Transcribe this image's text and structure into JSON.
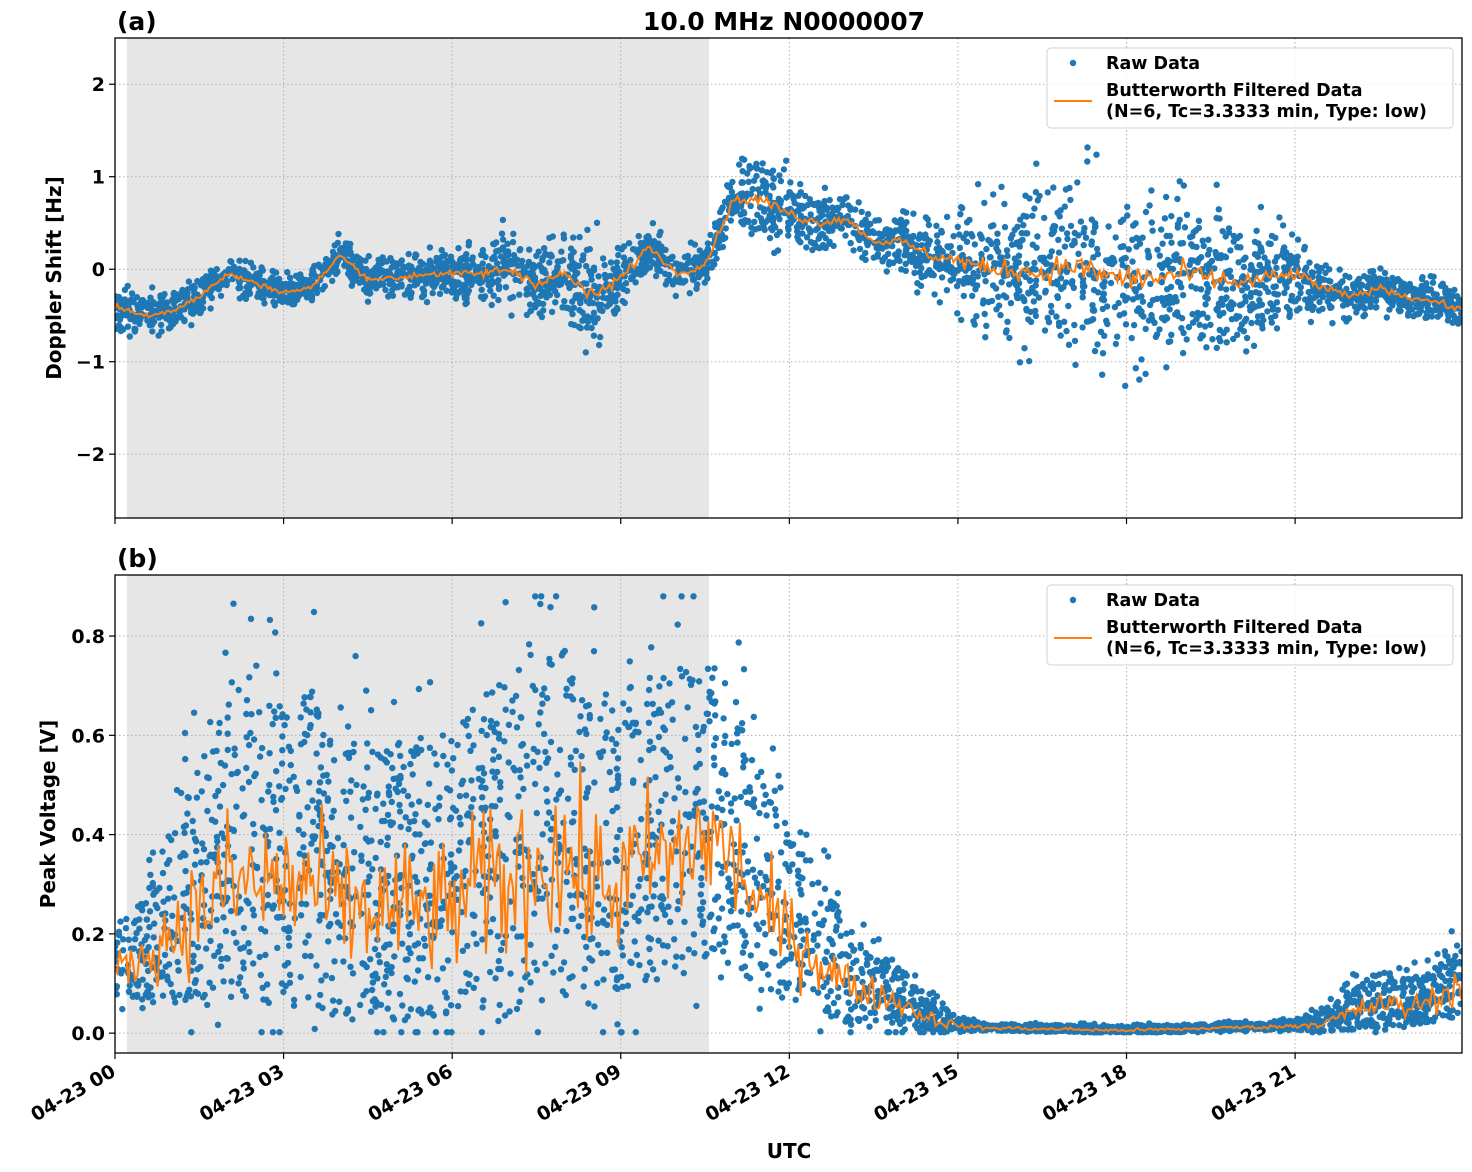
{
  "chart_data": [
    {
      "type": "scatter",
      "panel_label": "(a)",
      "title": "10.0 MHz N0000007",
      "xlabel": "",
      "ylabel": "Doppler Shift [Hz]",
      "xlim_hours": [
        0,
        23.97
      ],
      "ylim": [
        -2.69,
        2.5
      ],
      "yticks": [
        2,
        1,
        0,
        -1,
        -2
      ],
      "ytick_labels": [
        "2",
        "1",
        "0",
        "−1",
        "−2"
      ],
      "grid": true,
      "legend_position": "top-right",
      "shaded_interval_hours": [
        0.21,
        10.57
      ],
      "x_hours": [
        0,
        0.5,
        1,
        1.5,
        2,
        2.5,
        3,
        3.5,
        4,
        4.5,
        5,
        5.5,
        6,
        6.5,
        7,
        7.5,
        8,
        8.5,
        9,
        9.5,
        10,
        10.5,
        11,
        11.5,
        12,
        12.5,
        13,
        13.5,
        14,
        14.5,
        15,
        15.5,
        16,
        16.5,
        17,
        17.5,
        18,
        18.5,
        19,
        19.5,
        20,
        20.5,
        21,
        21.5,
        22,
        22.5,
        23,
        23.5,
        24
      ],
      "series": [
        {
          "name": "Butterworth Filtered Data\n(N=6, Tc=3.3333 min, Type: low)",
          "kind": "line",
          "color": "#ff7f0e",
          "values": [
            -0.4,
            -0.5,
            -0.45,
            -0.3,
            -0.05,
            -0.15,
            -0.25,
            -0.2,
            0.15,
            -0.1,
            -0.1,
            -0.05,
            -0.05,
            -0.05,
            0.0,
            -0.15,
            -0.05,
            -0.3,
            -0.1,
            0.25,
            -0.05,
            0.05,
            0.75,
            0.75,
            0.6,
            0.5,
            0.55,
            0.3,
            0.3,
            0.15,
            0.1,
            0.0,
            0.0,
            -0.05,
            0.05,
            -0.05,
            -0.1,
            -0.1,
            -0.05,
            -0.1,
            -0.15,
            -0.1,
            -0.05,
            -0.2,
            -0.3,
            -0.2,
            -0.3,
            -0.35,
            -0.45
          ]
        },
        {
          "name": "Raw Data",
          "kind": "scatter",
          "color": "#1f77b4",
          "spread": [
            0.3,
            0.3,
            0.3,
            0.3,
            0.25,
            0.25,
            0.25,
            0.25,
            0.25,
            0.25,
            0.3,
            0.3,
            0.3,
            0.4,
            0.5,
            0.5,
            0.5,
            0.7,
            0.5,
            0.3,
            0.3,
            0.3,
            0.4,
            0.6,
            0.5,
            0.4,
            0.35,
            0.35,
            0.4,
            0.5,
            0.7,
            0.9,
            1.0,
            1.1,
            1.2,
            1.2,
            1.2,
            1.2,
            1.1,
            1.0,
            0.9,
            0.8,
            0.6,
            0.4,
            0.3,
            0.3,
            0.3,
            0.3,
            0.3
          ]
        }
      ]
    },
    {
      "type": "scatter",
      "panel_label": "(b)",
      "title": "",
      "xlabel": "UTC",
      "ylabel": "Peak Voltage [V]",
      "xlim_hours": [
        0,
        23.97
      ],
      "ylim": [
        -0.04,
        0.923
      ],
      "yticks": [
        0.0,
        0.2,
        0.4,
        0.6,
        0.8
      ],
      "ytick_labels": [
        "0.0",
        "0.2",
        "0.4",
        "0.6",
        "0.8"
      ],
      "xtick_hours": [
        0,
        3,
        6,
        9,
        12,
        15,
        18,
        21
      ],
      "xtick_labels": [
        "04-23 00",
        "04-23 03",
        "04-23 06",
        "04-23 09",
        "04-23 12",
        "04-23 15",
        "04-23 18",
        "04-23 21"
      ],
      "grid": true,
      "legend_position": "top-right",
      "shaded_interval_hours": [
        0.21,
        10.57
      ],
      "x_hours": [
        0,
        0.5,
        1,
        1.5,
        2,
        2.5,
        3,
        3.5,
        4,
        4.5,
        5,
        5.5,
        6,
        6.5,
        7,
        7.5,
        8,
        8.5,
        9,
        9.5,
        10,
        10.5,
        11,
        11.5,
        12,
        12.5,
        13,
        13.5,
        14,
        14.5,
        15,
        15.5,
        16,
        16.5,
        17,
        17.5,
        18,
        18.5,
        19,
        19.5,
        20,
        20.5,
        21,
        21.5,
        22,
        22.5,
        23,
        23.5,
        24
      ],
      "series": [
        {
          "name": "Butterworth Filtered Data\n(N=6, Tc=3.3333 min, Type: low)",
          "kind": "line",
          "color": "#ff7f0e",
          "values": [
            0.13,
            0.15,
            0.2,
            0.25,
            0.3,
            0.3,
            0.3,
            0.3,
            0.25,
            0.25,
            0.25,
            0.25,
            0.25,
            0.3,
            0.3,
            0.35,
            0.35,
            0.3,
            0.3,
            0.35,
            0.35,
            0.4,
            0.35,
            0.25,
            0.2,
            0.15,
            0.1,
            0.08,
            0.06,
            0.03,
            0.015,
            0.01,
            0.01,
            0.008,
            0.008,
            0.006,
            0.006,
            0.007,
            0.008,
            0.01,
            0.012,
            0.012,
            0.015,
            0.02,
            0.04,
            0.06,
            0.05,
            0.07,
            0.1
          ]
        },
        {
          "name": "Raw Data",
          "kind": "scatter",
          "color": "#1f77b4",
          "spread": [
            0.1,
            0.15,
            0.25,
            0.35,
            0.45,
            0.45,
            0.45,
            0.45,
            0.4,
            0.4,
            0.4,
            0.4,
            0.4,
            0.45,
            0.5,
            0.5,
            0.5,
            0.45,
            0.45,
            0.45,
            0.45,
            0.45,
            0.4,
            0.3,
            0.25,
            0.2,
            0.15,
            0.1,
            0.08,
            0.05,
            0.02,
            0.01,
            0.01,
            0.01,
            0.01,
            0.01,
            0.01,
            0.01,
            0.01,
            0.01,
            0.01,
            0.01,
            0.015,
            0.03,
            0.06,
            0.08,
            0.07,
            0.08,
            0.12
          ]
        }
      ]
    }
  ]
}
